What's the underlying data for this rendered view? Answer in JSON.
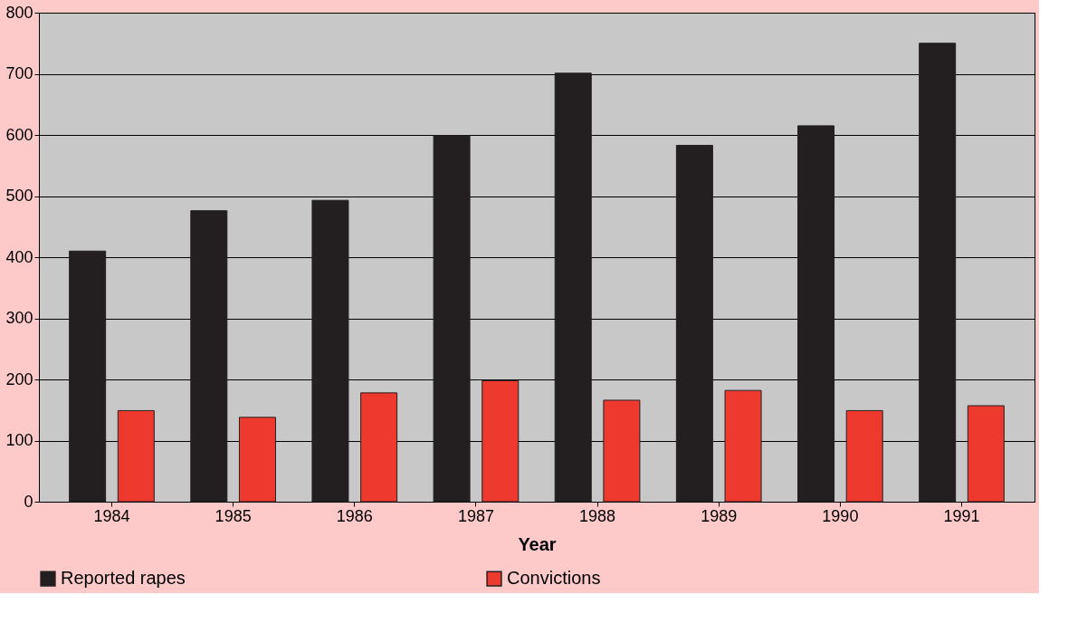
{
  "chart_data": {
    "type": "bar",
    "xlabel": "Year",
    "categories": [
      "1984",
      "1985",
      "1986",
      "1987",
      "1988",
      "1989",
      "1990",
      "1991"
    ],
    "series": [
      {
        "name": "Reported rapes",
        "color": "#231f20",
        "values": [
          410,
          476,
          493,
          599,
          701,
          583,
          615,
          750
        ]
      },
      {
        "name": "Convictions",
        "color": "#ee3a2e",
        "values": [
          149,
          138,
          178,
          198,
          166,
          182,
          149,
          157
        ]
      }
    ],
    "ylim": [
      0,
      800
    ],
    "yticks": [
      0,
      100,
      200,
      300,
      400,
      500,
      600,
      700,
      800
    ],
    "grid": "y",
    "legend": "bottom"
  }
}
